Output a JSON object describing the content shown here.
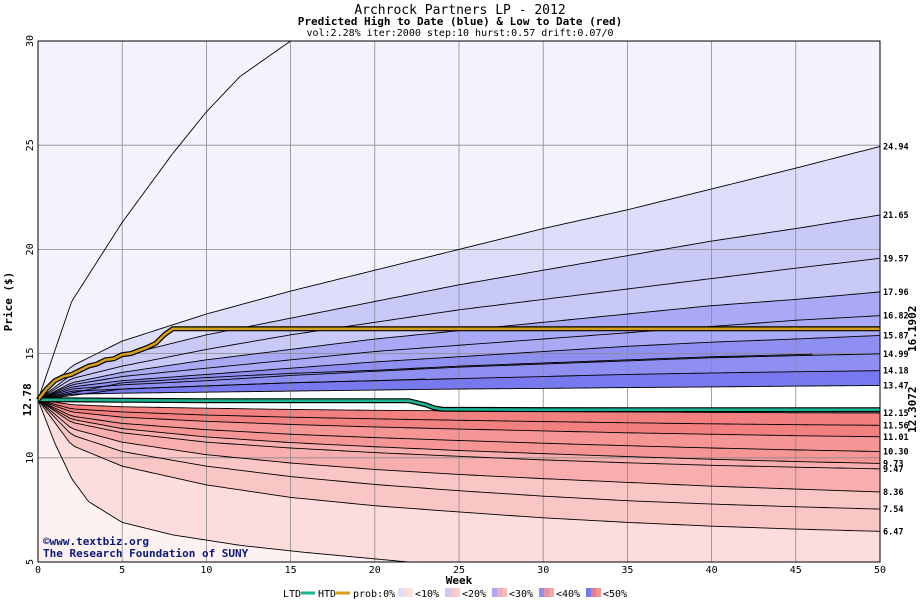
{
  "chart_data": {
    "type": "area",
    "title": "Archrock Partners LP - 2012",
    "subtitle": "Predicted High to Date (blue) &  Low to Date (red)",
    "params": "vol:2.28% iter:2000 step:10 hurst:0.57 drift:0.07/0",
    "xlabel": "Week",
    "ylabel": "Price ($)",
    "xlim": [
      0,
      50
    ],
    "ylim": [
      5,
      30
    ],
    "xticks": [
      0,
      5,
      10,
      15,
      20,
      25,
      30,
      35,
      40,
      45,
      50
    ],
    "yticks": [
      5,
      10,
      15,
      20,
      25,
      30
    ],
    "grid": true,
    "start_price": 12.78,
    "start_label": "12.78",
    "high_quantile_labels": [
      "24.94",
      "21.65",
      "19.57",
      "17.96",
      "16.82",
      "15.87",
      "14.99",
      "14.18",
      "13.47"
    ],
    "low_quantile_labels": [
      "12.15",
      "11.56",
      "11.01",
      "10.30",
      "9.73",
      "9.47",
      "8.36",
      "7.54",
      "6.47"
    ],
    "htd_end_label": "16.1902",
    "ltd_end_label": "12.3072",
    "colors": {
      "htd": "#d4a017",
      "ltd": "#1ab394",
      "band_blue": [
        "#f3f3fd",
        "#dedefb",
        "#c9c9f8",
        "#a9a9f5",
        "#8f8ff2",
        "#7878ef"
      ],
      "band_red": [
        "#fdf1f1",
        "#fcdcdc",
        "#fac5c5",
        "#f8aeae",
        "#f59595",
        "#f38080"
      ]
    },
    "htd_series": {
      "name": "HTD",
      "x": [
        0,
        0.5,
        1,
        1.5,
        2,
        2.5,
        3,
        3.5,
        4,
        4.5,
        5,
        5.5,
        6,
        6.5,
        7,
        7.5,
        8,
        15,
        25,
        35,
        45,
        50
      ],
      "y": [
        12.78,
        13.3,
        13.7,
        13.9,
        14.0,
        14.2,
        14.4,
        14.5,
        14.7,
        14.75,
        14.95,
        15.0,
        15.15,
        15.3,
        15.5,
        15.9,
        16.1902,
        16.1902,
        16.1902,
        16.1902,
        16.1902,
        16.1902
      ]
    },
    "ltd_series": {
      "name": "LTD",
      "x": [
        0,
        2,
        5,
        10,
        15,
        20,
        22,
        23,
        23.5,
        24,
        30,
        40,
        50
      ],
      "y": [
        12.78,
        12.78,
        12.76,
        12.74,
        12.74,
        12.74,
        12.74,
        12.55,
        12.4,
        12.33,
        12.31,
        12.3072,
        12.3072
      ]
    },
    "high_quantiles": [
      {
        "x": [
          0,
          2,
          5,
          8,
          10,
          12,
          15
        ],
        "y": [
          12.78,
          17.5,
          21.3,
          24.6,
          26.6,
          28.3,
          30
        ]
      },
      {
        "x": [
          0,
          2,
          5,
          10,
          15,
          20,
          25,
          30,
          35,
          40,
          45,
          50
        ],
        "y": [
          12.78,
          14.4,
          15.6,
          16.9,
          18.0,
          19.0,
          20.0,
          21.0,
          21.9,
          22.9,
          23.9,
          24.94
        ]
      },
      {
        "x": [
          0,
          2,
          5,
          10,
          15,
          20,
          25,
          30,
          35,
          40,
          45,
          50
        ],
        "y": [
          12.78,
          14.0,
          14.9,
          15.9,
          16.7,
          17.5,
          18.3,
          19.0,
          19.7,
          20.4,
          21.0,
          21.65
        ]
      },
      {
        "x": [
          0,
          2,
          5,
          10,
          15,
          20,
          25,
          30,
          35,
          40,
          45,
          50
        ],
        "y": [
          12.78,
          13.8,
          14.4,
          15.2,
          15.9,
          16.5,
          17.1,
          17.6,
          18.1,
          18.6,
          19.1,
          19.57
        ]
      },
      {
        "x": [
          0,
          2,
          5,
          10,
          15,
          20,
          25,
          30,
          35,
          40,
          45,
          50
        ],
        "y": [
          12.78,
          13.6,
          14.1,
          14.7,
          15.2,
          15.7,
          16.1,
          16.5,
          16.9,
          17.3,
          17.6,
          17.96
        ]
      },
      {
        "x": [
          0,
          2,
          5,
          10,
          15,
          20,
          25,
          30,
          35,
          40,
          45,
          50
        ],
        "y": [
          12.78,
          13.5,
          13.9,
          14.3,
          14.7,
          15.1,
          15.4,
          15.7,
          16.0,
          16.3,
          16.6,
          16.82
        ]
      },
      {
        "x": [
          0,
          2,
          5,
          10,
          15,
          20,
          25,
          30,
          35,
          40,
          45,
          50
        ],
        "y": [
          12.78,
          13.4,
          13.7,
          14.0,
          14.3,
          14.6,
          14.85,
          15.1,
          15.35,
          15.55,
          15.7,
          15.87
        ]
      },
      {
        "x": [
          0,
          2,
          5,
          10,
          15,
          20,
          25,
          30,
          35,
          40,
          45,
          50
        ],
        "y": [
          12.78,
          13.3,
          13.5,
          13.7,
          13.95,
          14.15,
          14.35,
          14.5,
          14.65,
          14.8,
          14.9,
          14.99
        ]
      },
      {
        "x": [
          0,
          2,
          5,
          10,
          15,
          20,
          25,
          30,
          35,
          40,
          45,
          50
        ],
        "y": [
          12.78,
          13.2,
          13.3,
          13.45,
          13.6,
          13.7,
          13.8,
          13.9,
          14.0,
          14.07,
          14.13,
          14.18
        ]
      },
      {
        "x": [
          0,
          2,
          5,
          10,
          15,
          20,
          25,
          30,
          35,
          40,
          45,
          50
        ],
        "y": [
          12.78,
          13.05,
          13.1,
          13.15,
          13.2,
          13.25,
          13.3,
          13.33,
          13.37,
          13.4,
          13.44,
          13.47
        ]
      }
    ],
    "low_quantiles": [
      {
        "x": [
          0,
          2,
          5,
          10,
          15,
          20,
          25,
          30,
          35,
          40,
          45,
          50
        ],
        "y": [
          12.78,
          12.55,
          12.45,
          12.38,
          12.32,
          12.28,
          12.25,
          12.22,
          12.2,
          12.18,
          12.16,
          12.15
        ]
      },
      {
        "x": [
          0,
          2,
          5,
          10,
          15,
          20,
          25,
          30,
          35,
          40,
          45,
          50
        ],
        "y": [
          12.78,
          12.35,
          12.2,
          12.05,
          11.95,
          11.87,
          11.8,
          11.74,
          11.68,
          11.63,
          11.59,
          11.56
        ]
      },
      {
        "x": [
          0,
          2,
          5,
          10,
          15,
          20,
          25,
          30,
          35,
          40,
          45,
          50
        ],
        "y": [
          12.78,
          12.2,
          11.95,
          11.75,
          11.6,
          11.48,
          11.38,
          11.29,
          11.2,
          11.13,
          11.06,
          11.01
        ]
      },
      {
        "x": [
          0,
          2,
          5,
          10,
          15,
          20,
          25,
          30,
          35,
          40,
          45,
          50
        ],
        "y": [
          12.78,
          12.0,
          11.65,
          11.35,
          11.13,
          10.97,
          10.83,
          10.7,
          10.58,
          10.47,
          10.38,
          10.3
        ]
      },
      {
        "x": [
          0,
          2,
          5,
          10,
          15,
          20,
          25,
          30,
          35,
          40,
          45,
          50
        ],
        "y": [
          12.78,
          11.85,
          11.4,
          11.0,
          10.73,
          10.53,
          10.35,
          10.2,
          10.06,
          9.93,
          9.82,
          9.73
        ]
      },
      {
        "x": [
          0,
          2,
          5,
          10,
          15,
          20,
          25,
          30,
          35,
          40,
          45,
          50
        ],
        "y": [
          12.78,
          11.7,
          11.2,
          10.75,
          10.47,
          10.25,
          10.07,
          9.9,
          9.76,
          9.64,
          9.55,
          9.47
        ]
      },
      {
        "x": [
          0,
          2,
          5,
          10,
          15,
          20,
          25,
          30,
          35,
          40,
          45,
          50
        ],
        "y": [
          12.78,
          11.4,
          10.75,
          10.15,
          9.75,
          9.44,
          9.2,
          9.0,
          8.82,
          8.64,
          8.5,
          8.36
        ]
      },
      {
        "x": [
          0,
          2,
          5,
          10,
          15,
          20,
          25,
          30,
          35,
          40,
          45,
          50
        ],
        "y": [
          12.78,
          11.1,
          10.3,
          9.6,
          9.1,
          8.72,
          8.42,
          8.16,
          7.94,
          7.78,
          7.65,
          7.54
        ]
      },
      {
        "x": [
          0,
          2,
          5,
          10,
          15,
          20,
          25,
          30,
          35,
          40,
          45,
          50
        ],
        "y": [
          12.78,
          10.6,
          9.6,
          8.7,
          8.1,
          7.7,
          7.4,
          7.12,
          6.9,
          6.72,
          6.58,
          6.47
        ]
      },
      {
        "x": [
          0,
          1,
          2,
          3,
          5,
          8,
          12,
          16,
          20,
          22
        ],
        "y": [
          12.78,
          10.7,
          9.0,
          7.9,
          6.9,
          6.3,
          5.8,
          5.45,
          5.15,
          5.0
        ]
      }
    ],
    "high_extra_lines": [
      {
        "x": [
          0,
          5,
          10,
          15,
          20,
          25,
          30,
          35,
          40,
          46
        ],
        "y": [
          12.78,
          13.6,
          13.85,
          14.05,
          14.2,
          14.4,
          14.55,
          14.7,
          14.85,
          14.97
        ]
      },
      {
        "x": [
          0,
          5,
          10,
          15,
          20,
          23
        ],
        "y": [
          12.78,
          13.3,
          13.45,
          13.6,
          13.7,
          13.78
        ]
      }
    ]
  },
  "credit": {
    "copyright_symbol": "©",
    "site": "www.textbiz.org",
    "org": "The Research Foundation of SUNY"
  },
  "legend": {
    "ltd": "LTD",
    "htd": "HTD",
    "prob": "prob:0%",
    "items": [
      "<10%",
      "<20%",
      "<30%",
      "<40%",
      "<50%"
    ]
  }
}
